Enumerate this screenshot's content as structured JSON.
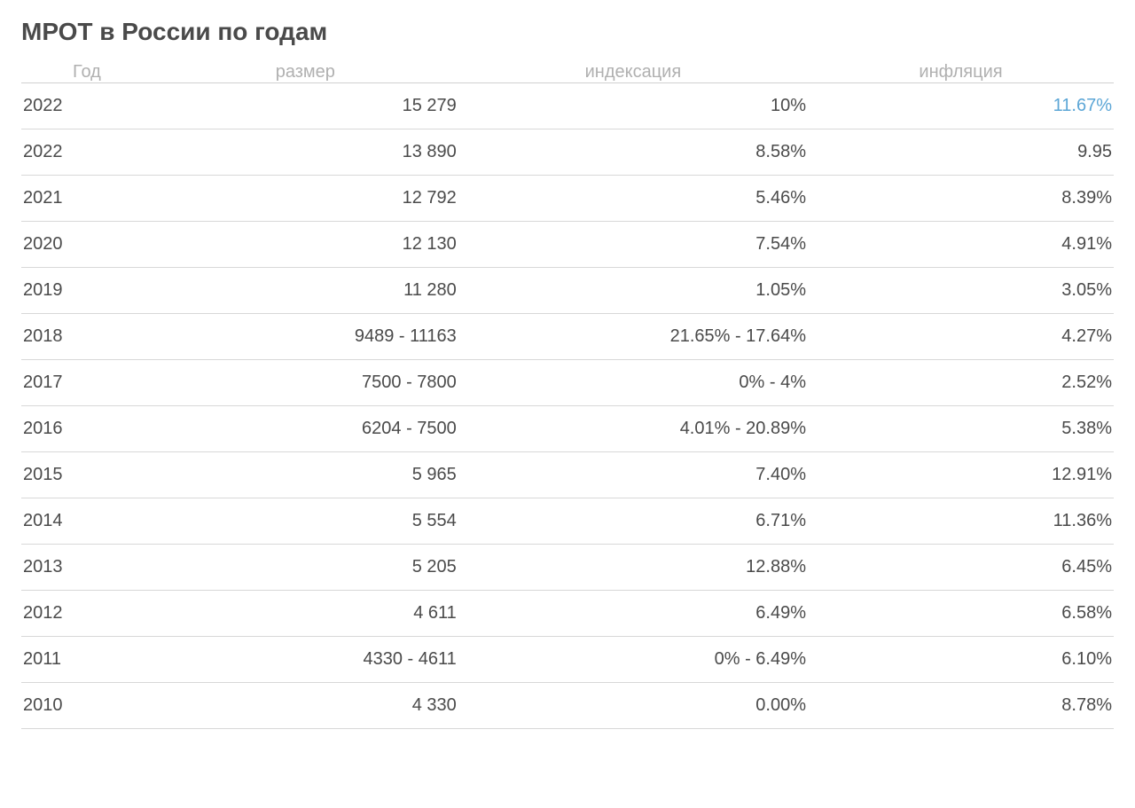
{
  "title": "МРОТ в России по годам",
  "columns": [
    "Год",
    "размер",
    "индексация",
    "инфляция"
  ],
  "rows": [
    {
      "year": "2022",
      "size": "15 279",
      "indexation": "10%",
      "inflation": "11.67%",
      "inflation_link": true
    },
    {
      "year": "2022",
      "size": "13 890",
      "indexation": "8.58%",
      "inflation": "9.95",
      "inflation_link": false
    },
    {
      "year": "2021",
      "size": "12 792",
      "indexation": "5.46%",
      "inflation": "8.39%",
      "inflation_link": false
    },
    {
      "year": "2020",
      "size": "12 130",
      "indexation": "7.54%",
      "inflation": "4.91%",
      "inflation_link": false
    },
    {
      "year": "2019",
      "size": "11 280",
      "indexation": "1.05%",
      "inflation": "3.05%",
      "inflation_link": false
    },
    {
      "year": "2018",
      "size": "9489 - 11163",
      "indexation": "21.65% - 17.64%",
      "inflation": "4.27%",
      "inflation_link": false
    },
    {
      "year": "2017",
      "size": "7500 - 7800",
      "indexation": "0% - 4%",
      "inflation": "2.52%",
      "inflation_link": false
    },
    {
      "year": "2016",
      "size": "6204 - 7500",
      "indexation": "4.01% - 20.89%",
      "inflation": "5.38%",
      "inflation_link": false
    },
    {
      "year": "2015",
      "size": "5 965",
      "indexation": "7.40%",
      "inflation": "12.91%",
      "inflation_link": false
    },
    {
      "year": "2014",
      "size": "5 554",
      "indexation": "6.71%",
      "inflation": "11.36%",
      "inflation_link": false
    },
    {
      "year": "2013",
      "size": "5 205",
      "indexation": "12.88%",
      "inflation": "6.45%",
      "inflation_link": false
    },
    {
      "year": "2012",
      "size": "4 611",
      "indexation": "6.49%",
      "inflation": "6.58%",
      "inflation_link": false
    },
    {
      "year": "2011",
      "size": "4330 - 4611",
      "indexation": "0% - 6.49%",
      "inflation": "6.10%",
      "inflation_link": false
    },
    {
      "year": "2010",
      "size": "4 330",
      "indexation": "0.00%",
      "inflation": "8.78%",
      "inflation_link": false
    }
  ],
  "styling": {
    "type": "table",
    "background_color": "#ffffff",
    "title_color": "#4a4a4a",
    "title_fontsize": 28,
    "title_fontweight": 700,
    "header_text_color": "#b0b0b0",
    "header_fontsize": 20,
    "header_fontweight": 400,
    "body_text_color": "#4a4a4a",
    "body_fontsize": 20,
    "link_color": "#5ca6d6",
    "row_border_color": "#d8d8d8",
    "header_border_color": "#d0d0d0",
    "row_padding_vertical": 14,
    "column_widths_pct": [
      12,
      28,
      32,
      28
    ],
    "column_alignments": [
      "left",
      "right",
      "right",
      "right"
    ],
    "header_alignments": [
      "center",
      "center",
      "center",
      "center"
    ],
    "font_family": "Trebuchet MS"
  }
}
